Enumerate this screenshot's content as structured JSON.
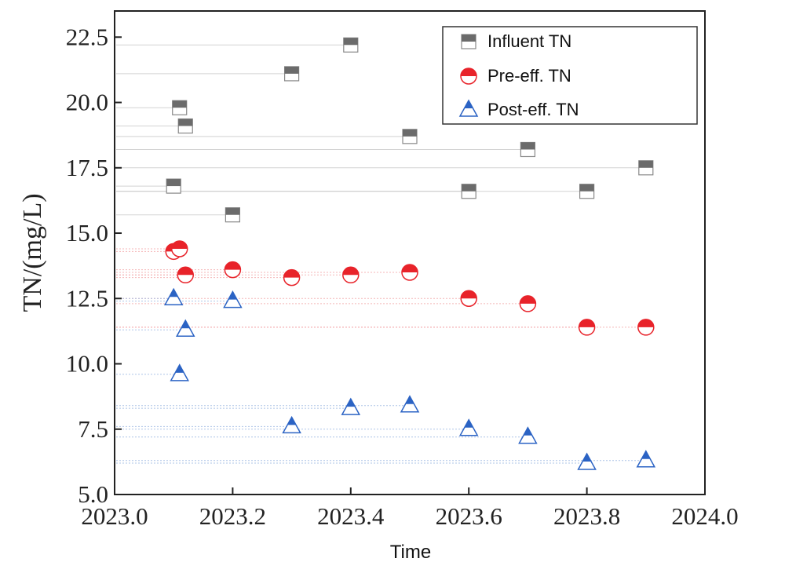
{
  "chart_data": {
    "type": "scatter",
    "xlabel": "Time",
    "ylabel": "TN/(mg/L)",
    "xlim": [
      2023.0,
      2024.0
    ],
    "ylim": [
      5.0,
      23.5
    ],
    "x_ticks": [
      "2023.0",
      "2023.2",
      "2023.4",
      "2023.6",
      "2023.8",
      "2024.0"
    ],
    "y_ticks": [
      "5.0",
      "7.5",
      "10.0",
      "12.5",
      "15.0",
      "17.5",
      "20.0",
      "22.5"
    ],
    "grid": false,
    "legend_position": "top-right",
    "series": [
      {
        "name": "Influent TN",
        "marker": "square",
        "color": "#6b6b6b",
        "points": [
          {
            "x": 2023.1,
            "y": 16.8
          },
          {
            "x": 2023.11,
            "y": 19.8
          },
          {
            "x": 2023.12,
            "y": 19.1
          },
          {
            "x": 2023.2,
            "y": 15.7
          },
          {
            "x": 2023.3,
            "y": 21.1
          },
          {
            "x": 2023.4,
            "y": 22.2
          },
          {
            "x": 2023.5,
            "y": 18.7
          },
          {
            "x": 2023.6,
            "y": 16.6
          },
          {
            "x": 2023.7,
            "y": 18.2
          },
          {
            "x": 2023.8,
            "y": 16.6
          },
          {
            "x": 2023.9,
            "y": 17.5
          }
        ]
      },
      {
        "name": "Pre-eff. TN",
        "marker": "half-circle",
        "color": "#e8232a",
        "points": [
          {
            "x": 2023.1,
            "y": 14.3
          },
          {
            "x": 2023.11,
            "y": 14.4
          },
          {
            "x": 2023.12,
            "y": 13.4
          },
          {
            "x": 2023.2,
            "y": 13.6
          },
          {
            "x": 2023.3,
            "y": 13.3
          },
          {
            "x": 2023.4,
            "y": 13.4
          },
          {
            "x": 2023.5,
            "y": 13.5
          },
          {
            "x": 2023.6,
            "y": 12.5
          },
          {
            "x": 2023.7,
            "y": 12.3
          },
          {
            "x": 2023.8,
            "y": 11.4
          },
          {
            "x": 2023.9,
            "y": 11.4
          }
        ]
      },
      {
        "name": "Post-eff. TN",
        "marker": "half-triangle",
        "color": "#2b63c4",
        "points": [
          {
            "x": 2023.1,
            "y": 12.5
          },
          {
            "x": 2023.11,
            "y": 9.6
          },
          {
            "x": 2023.12,
            "y": 11.3
          },
          {
            "x": 2023.2,
            "y": 12.4
          },
          {
            "x": 2023.3,
            "y": 7.6
          },
          {
            "x": 2023.4,
            "y": 8.3
          },
          {
            "x": 2023.5,
            "y": 8.4
          },
          {
            "x": 2023.6,
            "y": 7.5
          },
          {
            "x": 2023.7,
            "y": 7.2
          },
          {
            "x": 2023.8,
            "y": 6.2
          },
          {
            "x": 2023.9,
            "y": 6.3
          }
        ]
      }
    ]
  }
}
